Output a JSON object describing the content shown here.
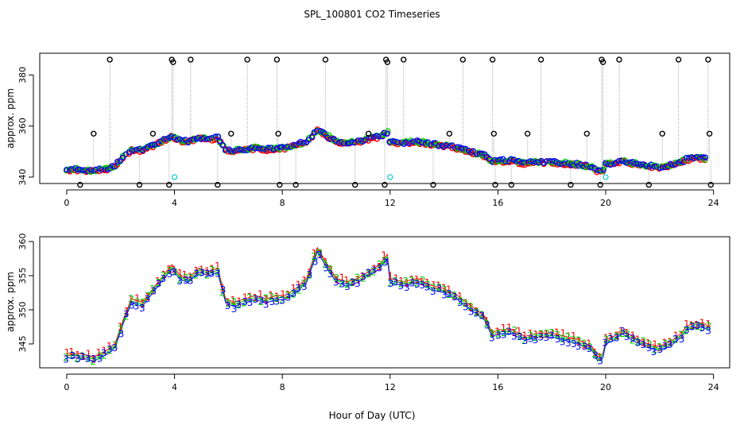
{
  "chart_data": {
    "type": "scatter",
    "title": "SPL_100801  CO2 Timeseries",
    "xlabel": "Hour of Day (UTC)",
    "colors": {
      "series1": "#ff0000",
      "series2": "#00cc00",
      "series3": "#0000ff",
      "raw": "#000000",
      "flag": "#00cccc",
      "drop": "#999999"
    },
    "panels": [
      {
        "name": "top",
        "ylabel": "approx. ppm",
        "xlim": [
          -1,
          24.6
        ],
        "ylim": [
          337.5,
          388.5
        ],
        "xticks": [
          0,
          4,
          8,
          12,
          16,
          20,
          24
        ],
        "yticks": [
          340,
          360,
          380
        ],
        "outlier_points": [
          {
            "x": 0.5,
            "y": 337
          },
          {
            "x": 1.0,
            "y": 357
          },
          {
            "x": 1.6,
            "y": 386
          },
          {
            "x": 2.7,
            "y": 337
          },
          {
            "x": 3.2,
            "y": 357
          },
          {
            "x": 3.8,
            "y": 337
          },
          {
            "x": 3.9,
            "y": 386
          },
          {
            "x": 3.95,
            "y": 385
          },
          {
            "x": 4.6,
            "y": 386
          },
          {
            "x": 5.6,
            "y": 337
          },
          {
            "x": 6.1,
            "y": 357
          },
          {
            "x": 6.7,
            "y": 386
          },
          {
            "x": 7.8,
            "y": 386
          },
          {
            "x": 7.85,
            "y": 357
          },
          {
            "x": 7.9,
            "y": 337
          },
          {
            "x": 8.5,
            "y": 337
          },
          {
            "x": 9.6,
            "y": 386
          },
          {
            "x": 10.7,
            "y": 337
          },
          {
            "x": 11.2,
            "y": 357
          },
          {
            "x": 11.8,
            "y": 337
          },
          {
            "x": 11.85,
            "y": 386
          },
          {
            "x": 11.9,
            "y": 385
          },
          {
            "x": 12.5,
            "y": 386
          },
          {
            "x": 13.6,
            "y": 337
          },
          {
            "x": 14.2,
            "y": 357
          },
          {
            "x": 14.7,
            "y": 386
          },
          {
            "x": 15.8,
            "y": 386
          },
          {
            "x": 15.85,
            "y": 357
          },
          {
            "x": 15.9,
            "y": 337
          },
          {
            "x": 16.5,
            "y": 337
          },
          {
            "x": 17.1,
            "y": 357
          },
          {
            "x": 17.6,
            "y": 386
          },
          {
            "x": 18.7,
            "y": 337
          },
          {
            "x": 19.3,
            "y": 357
          },
          {
            "x": 19.8,
            "y": 337
          },
          {
            "x": 19.85,
            "y": 386
          },
          {
            "x": 19.9,
            "y": 385
          },
          {
            "x": 20.5,
            "y": 386
          },
          {
            "x": 21.6,
            "y": 337
          },
          {
            "x": 22.1,
            "y": 357
          },
          {
            "x": 22.7,
            "y": 386
          },
          {
            "x": 23.8,
            "y": 386
          },
          {
            "x": 23.85,
            "y": 357
          },
          {
            "x": 23.9,
            "y": 337
          }
        ],
        "flag_points": [
          {
            "x": 4.0,
            "y": 340
          },
          {
            "x": 12.0,
            "y": 340
          },
          {
            "x": 20.0,
            "y": 340
          }
        ]
      },
      {
        "name": "bottom",
        "ylabel": "approx. ppm",
        "xlim": [
          -1,
          24.6
        ],
        "ylim": [
          341.5,
          360.7
        ],
        "xticks": [
          0,
          4,
          8,
          12,
          16,
          20,
          24
        ],
        "yticks": [
          345,
          350,
          355,
          360
        ],
        "marker_labels": [
          "1",
          "2",
          "3"
        ]
      }
    ],
    "series": [
      {
        "name": "1",
        "offset": 0.6
      },
      {
        "name": "2",
        "offset": 0.3
      },
      {
        "name": "3",
        "offset": 0.0
      }
    ],
    "x": [
      0,
      0.5,
      1.0,
      1.5,
      1.8,
      2.1,
      2.4,
      2.8,
      3.2,
      3.6,
      3.9,
      4.2,
      4.5,
      4.9,
      5.3,
      5.6,
      5.9,
      6.2,
      6.6,
      7.0,
      7.4,
      7.8,
      8.1,
      8.5,
      8.9,
      9.3,
      9.6,
      10.0,
      10.4,
      10.8,
      11.2,
      11.6,
      11.9,
      12.0,
      12.5,
      13.0,
      13.5,
      14.0,
      14.5,
      15.0,
      15.5,
      15.8,
      16.0,
      16.5,
      17.0,
      17.5,
      18.0,
      18.5,
      19.0,
      19.5,
      19.7,
      19.9,
      20.0,
      20.3,
      20.6,
      21.0,
      21.5,
      22.0,
      22.5,
      22.8,
      23.0,
      23.3,
      23.6,
      23.8
    ],
    "y": [
      343.0,
      343.0,
      342.5,
      343.5,
      344.5,
      348.0,
      351.0,
      350.5,
      352.5,
      354.5,
      356.0,
      354.5,
      354.0,
      355.5,
      355.0,
      355.5,
      351.0,
      350.5,
      351.0,
      351.5,
      351.0,
      351.5,
      351.5,
      352.5,
      354.0,
      358.5,
      356.5,
      354.0,
      353.5,
      354.0,
      355.0,
      356.0,
      357.5,
      354.0,
      353.5,
      354.0,
      353.0,
      352.5,
      351.5,
      350.0,
      348.5,
      346.0,
      346.5,
      346.5,
      345.5,
      346.0,
      346.0,
      345.5,
      345.0,
      344.0,
      342.5,
      343.0,
      345.0,
      345.5,
      346.5,
      345.5,
      344.5,
      344.0,
      345.0,
      346.0,
      347.0,
      347.5,
      347.5,
      347.0
    ]
  }
}
